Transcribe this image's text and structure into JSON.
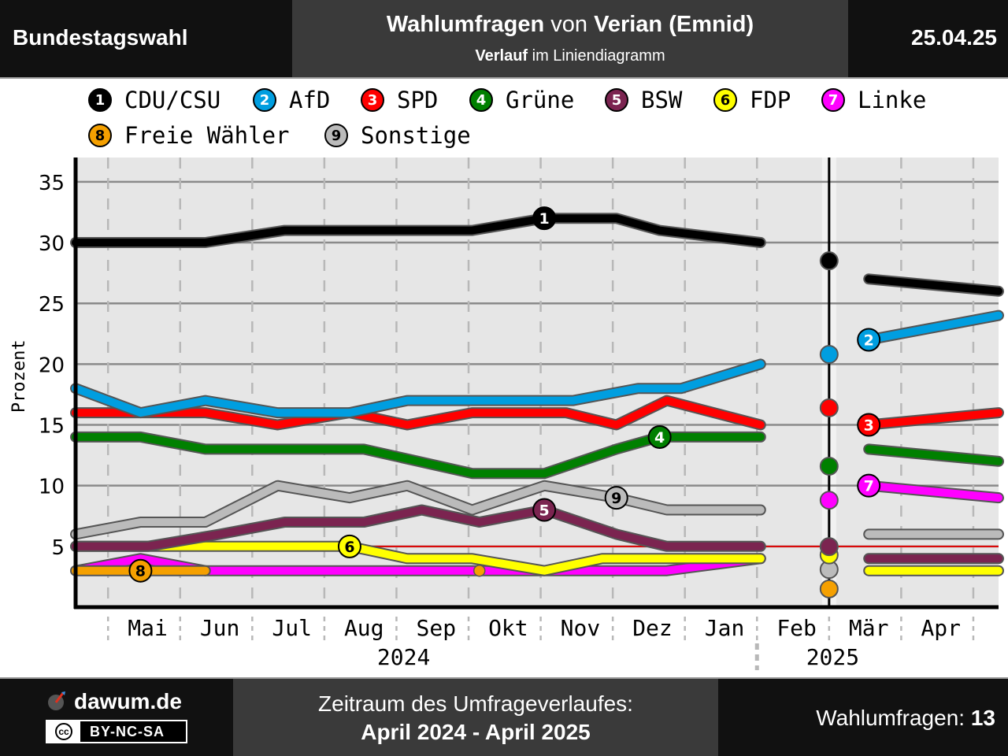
{
  "header": {
    "left": "Bundestagswahl",
    "title_bold_1": "Wahlumfragen",
    "title_mid": " von ",
    "title_bold_2": "Verian (Emnid)",
    "subtitle_bold": "Verlauf",
    "subtitle_rest": " im Liniendiagramm",
    "date": "25.04.25"
  },
  "legend": [
    {
      "num": "1",
      "name": "CDU/CSU",
      "color": "#000000",
      "text_color": "#ffffff"
    },
    {
      "num": "2",
      "name": "AfD",
      "color": "#009ee0",
      "text_color": "#ffffff"
    },
    {
      "num": "3",
      "name": "SPD",
      "color": "#ff0000",
      "text_color": "#ffffff"
    },
    {
      "num": "4",
      "name": "Grüne",
      "color": "#008000",
      "text_color": "#ffffff"
    },
    {
      "num": "5",
      "name": "BSW",
      "color": "#7b2450",
      "text_color": "#ffffff"
    },
    {
      "num": "6",
      "name": "FDP",
      "color": "#ffff00",
      "text_color": "#000000"
    },
    {
      "num": "7",
      "name": "Linke",
      "color": "#ff00ff",
      "text_color": "#ffffff"
    },
    {
      "num": "8",
      "name": "Freie Wähler",
      "color": "#f5a000",
      "text_color": "#000000"
    },
    {
      "num": "9",
      "name": "Sonstige",
      "color": "#bbbbbb",
      "text_color": "#000000"
    }
  ],
  "chart_data": {
    "type": "line",
    "ylabel": "Prozent",
    "ylim": [
      0,
      37
    ],
    "yticks": [
      5,
      10,
      15,
      20,
      25,
      30,
      35
    ],
    "x_unit": "months since 2024-04-01",
    "xlim": [
      0.0,
      12.8
    ],
    "months": [
      {
        "label": "Mai",
        "x": 1.0
      },
      {
        "label": "Jun",
        "x": 2.0
      },
      {
        "label": "Jul",
        "x": 3.0
      },
      {
        "label": "Aug",
        "x": 4.0
      },
      {
        "label": "Sep",
        "x": 5.0
      },
      {
        "label": "Okt",
        "x": 6.0
      },
      {
        "label": "Nov",
        "x": 7.0
      },
      {
        "label": "Dez",
        "x": 8.0
      },
      {
        "label": "Jan",
        "x": 9.0
      },
      {
        "label": "Feb",
        "x": 10.0
      },
      {
        "label": "Mär",
        "x": 11.0
      },
      {
        "label": "Apr",
        "x": 12.0
      }
    ],
    "years": [
      {
        "label": "2024",
        "x": 4.55
      },
      {
        "label": "2025",
        "x": 10.5
      }
    ],
    "year_separator_x": 9.0,
    "threshold": 5,
    "election": {
      "date": "2025-02-23",
      "x": 10.45
    },
    "series": [
      {
        "name": "CDU/CSU",
        "num": "1",
        "color": "#000000",
        "before": [
          [
            0,
            30
          ],
          [
            1.8,
            30
          ],
          [
            2.9,
            31
          ],
          [
            5.5,
            31
          ],
          [
            6.5,
            32
          ],
          [
            7.5,
            32
          ],
          [
            8.1,
            31
          ],
          [
            9.5,
            30
          ]
        ],
        "after": [
          [
            11.0,
            27
          ],
          [
            12.8,
            26
          ]
        ],
        "result": 28.5,
        "label_at": [
          6.5,
          32
        ]
      },
      {
        "name": "AfD",
        "num": "2",
        "color": "#009ee0",
        "before": [
          [
            0,
            18
          ],
          [
            0.9,
            16
          ],
          [
            1.8,
            17
          ],
          [
            2.8,
            16
          ],
          [
            3.8,
            16
          ],
          [
            4.6,
            17
          ],
          [
            6.9,
            17
          ],
          [
            7.8,
            18
          ],
          [
            8.4,
            18
          ],
          [
            9.5,
            20
          ]
        ],
        "after": [
          [
            11.0,
            22
          ],
          [
            12.8,
            24
          ]
        ],
        "result": 20.8,
        "label_at": [
          11.0,
          22
        ]
      },
      {
        "name": "SPD",
        "num": "3",
        "color": "#ff0000",
        "before": [
          [
            0,
            16
          ],
          [
            1.8,
            16
          ],
          [
            2.8,
            15
          ],
          [
            3.8,
            16
          ],
          [
            4.6,
            15
          ],
          [
            5.5,
            16
          ],
          [
            6.8,
            16
          ],
          [
            7.5,
            15
          ],
          [
            8.2,
            17
          ],
          [
            9.5,
            15
          ]
        ],
        "after": [
          [
            11.0,
            15
          ],
          [
            12.8,
            16
          ]
        ],
        "result": 16.4,
        "label_at": [
          11.0,
          15
        ]
      },
      {
        "name": "Grüne",
        "num": "4",
        "color": "#008000",
        "before": [
          [
            0,
            14
          ],
          [
            0.9,
            14
          ],
          [
            1.8,
            13
          ],
          [
            4.0,
            13
          ],
          [
            5.5,
            11
          ],
          [
            6.5,
            11
          ],
          [
            7.5,
            13
          ],
          [
            8.1,
            14
          ],
          [
            9.5,
            14
          ]
        ],
        "after": [
          [
            11.0,
            13
          ],
          [
            12.8,
            12
          ]
        ],
        "result": 11.6,
        "label_at": [
          8.1,
          14
        ]
      },
      {
        "name": "BSW",
        "num": "5",
        "color": "#7b2450",
        "before": [
          [
            0,
            5
          ],
          [
            1.0,
            5
          ],
          [
            2.0,
            6
          ],
          [
            2.9,
            7
          ],
          [
            4.0,
            7
          ],
          [
            4.8,
            8
          ],
          [
            5.6,
            7
          ],
          [
            6.5,
            8
          ],
          [
            7.5,
            6
          ],
          [
            8.2,
            5
          ],
          [
            9.5,
            5
          ]
        ],
        "after": [
          [
            11.0,
            4
          ],
          [
            12.8,
            4
          ]
        ],
        "result": 4.98,
        "label_at": [
          6.5,
          8
        ]
      },
      {
        "name": "FDP",
        "num": "6",
        "color": "#ffff00",
        "before": [
          [
            0,
            5
          ],
          [
            3.8,
            5
          ],
          [
            4.6,
            4
          ],
          [
            5.5,
            4
          ],
          [
            6.5,
            3
          ],
          [
            7.3,
            4
          ],
          [
            8.3,
            4
          ],
          [
            9.5,
            4
          ]
        ],
        "after": [
          [
            11.0,
            3
          ],
          [
            12.8,
            3
          ]
        ],
        "result": 4.3,
        "label_at": [
          3.8,
          5
        ]
      },
      {
        "name": "Linke",
        "num": "7",
        "color": "#ff00ff",
        "before": [
          [
            0,
            3
          ],
          [
            0.9,
            4
          ],
          [
            1.8,
            3
          ],
          [
            8.2,
            3
          ],
          [
            9.5,
            4
          ]
        ],
        "after": [
          [
            11.0,
            10
          ],
          [
            12.8,
            9
          ]
        ],
        "result": 8.8,
        "label_at": [
          11.0,
          10
        ]
      },
      {
        "name": "Freie Wähler",
        "num": "8",
        "color": "#f5a000",
        "before": [
          [
            0,
            3
          ],
          [
            1.8,
            3
          ]
        ],
        "after": [],
        "point": [
          5.6,
          3
        ],
        "result": 1.5,
        "label_at": [
          0.9,
          3
        ]
      },
      {
        "name": "Sonstige",
        "num": "9",
        "color": "#bbbbbb",
        "before": [
          [
            0,
            6
          ],
          [
            0.9,
            7
          ],
          [
            1.8,
            7
          ],
          [
            2.8,
            10
          ],
          [
            3.8,
            9
          ],
          [
            4.6,
            10
          ],
          [
            5.5,
            8
          ],
          [
            6.5,
            10
          ],
          [
            7.5,
            9
          ],
          [
            8.2,
            8
          ],
          [
            9.5,
            8
          ]
        ],
        "after": [
          [
            11.0,
            6
          ],
          [
            12.8,
            6
          ]
        ],
        "result": 3.1,
        "label_at": [
          7.5,
          9
        ]
      }
    ]
  },
  "footer": {
    "brand": "dawum.de",
    "license": "BY-NC-SA",
    "license_cc": "cc",
    "period_label": "Zeitraum des Umfrageverlaufes:",
    "period": "April 2024 - April 2025",
    "count_label": "Wahlumfragen: ",
    "count": "13"
  }
}
